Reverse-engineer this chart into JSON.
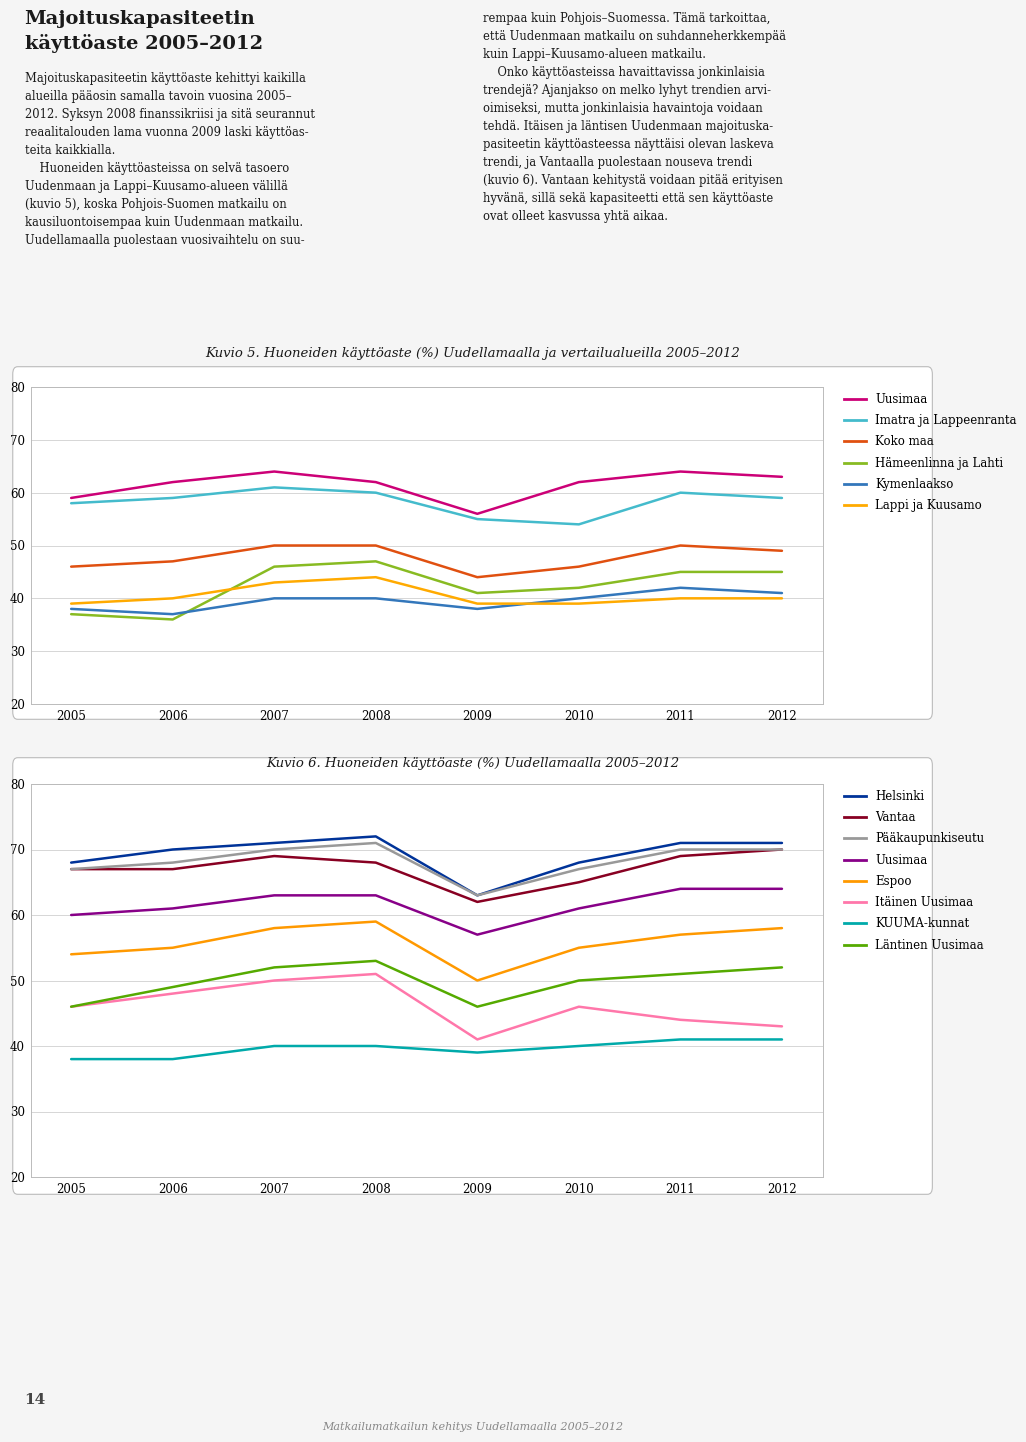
{
  "years": [
    2005,
    2006,
    2007,
    2008,
    2009,
    2010,
    2011,
    2012
  ],
  "chart1": {
    "title": "Kuvio 5. Huoneiden käyttöaste (%) Uudellamaalla ja vertailualueilla 2005–2012",
    "series": {
      "Uusimaa": {
        "color": "#cc0077",
        "data": [
          59,
          62,
          64,
          62,
          56,
          62,
          64,
          63
        ]
      },
      "Imatra ja Lappeenranta": {
        "color": "#44bbcc",
        "data": [
          58,
          59,
          61,
          60,
          55,
          54,
          60,
          59
        ]
      },
      "Koko maa": {
        "color": "#e05010",
        "data": [
          46,
          47,
          50,
          50,
          44,
          46,
          50,
          49
        ]
      },
      "Hämeenlinna ja Lahti": {
        "color": "#88bb22",
        "data": [
          37,
          36,
          46,
          47,
          41,
          42,
          45,
          45
        ]
      },
      "Kymenlaakso": {
        "color": "#3377bb",
        "data": [
          38,
          37,
          40,
          40,
          38,
          40,
          42,
          41
        ]
      },
      "Lappi ja Kuusamo": {
        "color": "#ffaa00",
        "data": [
          39,
          40,
          43,
          44,
          39,
          39,
          40,
          40
        ]
      }
    }
  },
  "chart2": {
    "title": "Kuvio 6. Huoneiden käyttöaste (%) Uudellamaalla 2005–2012",
    "series": {
      "Helsinki": {
        "color": "#003399",
        "data": [
          68,
          70,
          71,
          72,
          63,
          68,
          71,
          71
        ]
      },
      "Vantaa": {
        "color": "#880022",
        "data": [
          67,
          67,
          69,
          68,
          62,
          65,
          69,
          70
        ]
      },
      "Pääkaupunkiseutu": {
        "color": "#999999",
        "data": [
          67,
          68,
          70,
          71,
          63,
          67,
          70,
          70
        ]
      },
      "Uusimaa": {
        "color": "#880088",
        "data": [
          60,
          61,
          63,
          63,
          57,
          61,
          64,
          64
        ]
      },
      "Espoo": {
        "color": "#ff9900",
        "data": [
          54,
          55,
          58,
          59,
          50,
          55,
          57,
          58
        ]
      },
      "Itäinen Uusimaa": {
        "color": "#ff77aa",
        "data": [
          46,
          48,
          50,
          51,
          41,
          46,
          44,
          43
        ]
      },
      "KUUMA-kunnat": {
        "color": "#00aaaa",
        "data": [
          38,
          38,
          40,
          40,
          39,
          40,
          41,
          41
        ]
      },
      "Läntinen Uusimaa": {
        "color": "#55aa00",
        "data": [
          46,
          49,
          52,
          53,
          46,
          50,
          51,
          52
        ]
      }
    }
  },
  "ylim": [
    20,
    80
  ],
  "yticks": [
    20,
    30,
    40,
    50,
    60,
    70,
    80
  ],
  "page_title_line1": "Majoituskapasiteetin",
  "page_title_line2": "käyttöaste 2005–2012",
  "left_col_text": "Majoituskapasiteetin käyttöaste kehittyi kaikilla\nalueilla pääosin samalla tavoin vuosina 2005–\n2012. Syksyn 2008 finanssikriisi ja sitä seurannut\nreaalitalouden lama vuonna 2009 laski käyttöas-\nteita kaikkialla.\n    Huoneiden käyttöasteissa on selvä tasoero\nUudenmaan ja Lappi–Kuusamo-alueen välillä\n(kuvio 5), koska Pohjois-Suomen matkailu on\nkausiluontoisempaa kuin Uudenmaan matkailu.\nUudellamaalla puolestaan vuosivaihtelu on suu-",
  "right_col_text": "rempaa kuin Pohjois–Suomessa. Tämä tarkoittaa,\nettä Uudenmaan matkailu on suhdanneherkkempää\nkuin Lappi–Kuusamo-alueen matkailu.\n    Onko käyttöasteissa havaittavissa jonkinlaisia\ntrendejä? Ajanjakso on melko lyhyt trendien arvi-\noimiseksi, mutta jonkinlaisia havaintoja voidaan\ntehdä. Itäisen ja läntisen Uudenmaan majoituska-\npasiteetin käyttöasteessa näyttäisi olevan laskeva\ntrendi, ja Vantaalla puolestaan nouseva trendi\n(kuvio 6). Vantaan kehitystä voidaan pitää erityisen\nhyvänä, sillä sekä kapasiteetti että sen käyttöaste\novat olleet kasvussa yhtä aikaa.",
  "page_number": "14",
  "footer_text": "Matkailumatkailun kehitys Uudellamaalla 2005–2012",
  "bg_color": "#f5f5f5",
  "chart_bg": "#ffffff",
  "box_edge": "#bbbbbb",
  "text_color": "#1a1a1a"
}
